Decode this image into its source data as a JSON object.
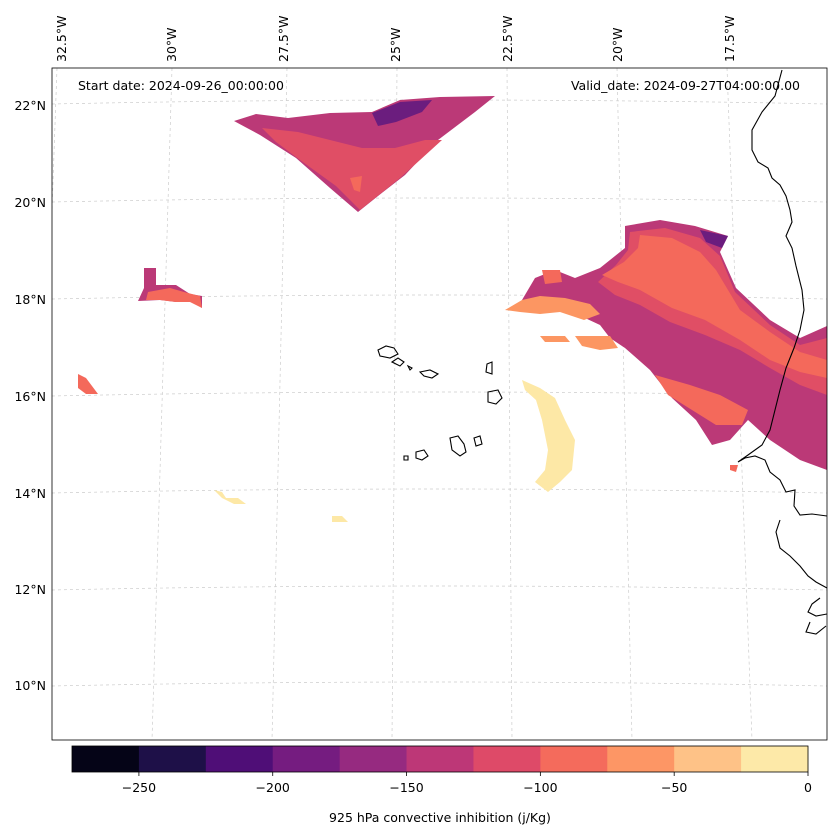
{
  "map": {
    "annotations": {
      "start_date": "Start date: 2024-09-26_00:00:00",
      "valid_date": "Valid_date: 2024-09-27T04:00:00.00"
    },
    "longitude_labels": [
      "32.5°W",
      "30°W",
      "27.5°W",
      "25°W",
      "22.5°W",
      "20°W",
      "17.5°W"
    ],
    "latitude_labels": [
      "22°N",
      "20°N",
      "18°N",
      "16°N",
      "14°N",
      "12°N",
      "10°N"
    ],
    "gridlines": true,
    "coastline_color": "#000000",
    "field_colors": {
      "cin_-175_-150": "#8f2a7f",
      "cin_-150_-125": "#bb3977",
      "cin_-125_-100": "#e04e65",
      "cin_-100_-75": "#f4695b",
      "cin_-75_-50": "#fc9662",
      "cin_-50_-25": "#febf83",
      "cin_-25_0": "#fde8a6",
      "cin_-200_-175": "#6b1d7e"
    }
  },
  "colorbar": {
    "label": "925 hPa convective inhibition (j/Kg)",
    "min": -275,
    "max": 0,
    "step": 25,
    "tick_labels": [
      "−250",
      "−200",
      "−150",
      "−100",
      "−50",
      "0"
    ],
    "tick_values": [
      -250,
      -200,
      -150,
      -100,
      -50,
      0
    ],
    "colors": [
      "#050417",
      "#1e1048",
      "#4f0e77",
      "#751c80",
      "#962a80",
      "#bd3777",
      "#de4a68",
      "#f46b5c",
      "#fd9665",
      "#fec287",
      "#fde9a8"
    ]
  }
}
